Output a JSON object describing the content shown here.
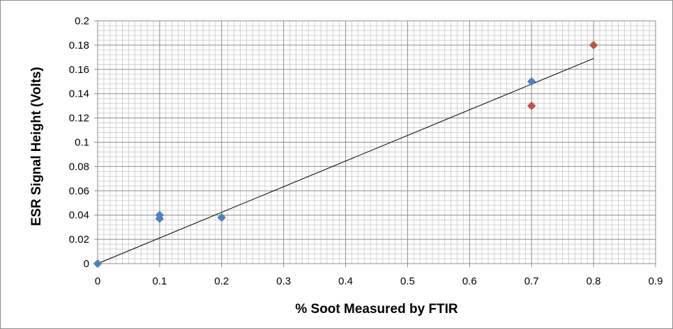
{
  "chart_data": {
    "type": "scatter",
    "title": "",
    "xlabel": "% Soot Measured by FTIR",
    "ylabel": "ESR Signal Height (Volts)",
    "xlim": [
      0,
      0.9
    ],
    "ylim": [
      0,
      0.2
    ],
    "x_ticks": [
      "0",
      "0.1",
      "0.2",
      "0.3",
      "0.4",
      "0.5",
      "0.6",
      "0.7",
      "0.8",
      "0.9"
    ],
    "y_ticks": [
      "0",
      "0.02",
      "0.04",
      "0.06",
      "0.08",
      "0.1",
      "0.12",
      "0.14",
      "0.16",
      "0.18",
      "0.2"
    ],
    "x_tick_values": [
      0,
      0.1,
      0.2,
      0.3,
      0.4,
      0.5,
      0.6,
      0.7,
      0.8,
      0.9
    ],
    "y_tick_values": [
      0,
      0.02,
      0.04,
      0.06,
      0.08,
      0.1,
      0.12,
      0.14,
      0.16,
      0.18,
      0.2
    ],
    "grid": true,
    "legend": "none",
    "series": [
      {
        "marker": "diamond",
        "color": "#4f81bd",
        "points": [
          {
            "x": 0,
            "y": 0
          },
          {
            "x": 0.1,
            "y": 0.04
          },
          {
            "x": 0.1,
            "y": 0.037
          },
          {
            "x": 0.2,
            "y": 0.038
          },
          {
            "x": 0.7,
            "y": 0.15
          }
        ]
      },
      {
        "marker": "diamond",
        "color": "#c0504d",
        "points": [
          {
            "x": 0.7,
            "y": 0.13
          },
          {
            "x": 0.8,
            "y": 0.18
          }
        ]
      }
    ],
    "trendline": {
      "type": "linear",
      "color": "#000000",
      "from": {
        "x": 0,
        "y": 0
      },
      "to": {
        "x": 0.8,
        "y": 0.169
      }
    },
    "colors": {
      "major_grid": "#8c8c8c",
      "minor_grid": "#c8c8c8",
      "axis": "#8c8c8c",
      "frame": "#8c8c8c"
    }
  }
}
